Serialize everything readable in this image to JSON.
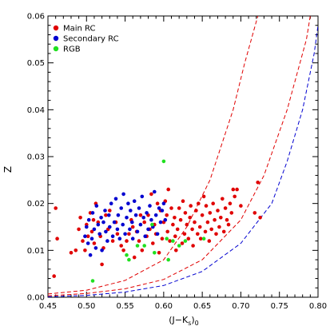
{
  "chart_data": {
    "type": "scatter",
    "xlabel": "(J−K",
    "xlabel_sub1": "s",
    "xlabel_mid": ")",
    "xlabel_sub2": "0",
    "ylabel": "Z",
    "xlim": [
      0.45,
      0.8
    ],
    "ylim": [
      0.0,
      0.06
    ],
    "xticks": [
      "0.45",
      "0.50",
      "0.55",
      "0.60",
      "0.65",
      "0.70",
      "0.75",
      "0.80"
    ],
    "yticks": [
      "0.00",
      "0.01",
      "0.02",
      "0.03",
      "0.04",
      "0.05",
      "0.06"
    ],
    "legend_position": "top-left",
    "series": [
      {
        "name": "Main RC",
        "color": "#e00000",
        "points": [
          [
            0.458,
            0.0045
          ],
          [
            0.46,
            0.019
          ],
          [
            0.462,
            0.0125
          ],
          [
            0.48,
            0.0095
          ],
          [
            0.486,
            0.01
          ],
          [
            0.49,
            0.0145
          ],
          [
            0.492,
            0.017
          ],
          [
            0.495,
            0.012
          ],
          [
            0.498,
            0.01
          ],
          [
            0.5,
            0.0155
          ],
          [
            0.502,
            0.013
          ],
          [
            0.505,
            0.018
          ],
          [
            0.507,
            0.014
          ],
          [
            0.509,
            0.0165
          ],
          [
            0.51,
            0.0115
          ],
          [
            0.512,
            0.02
          ],
          [
            0.515,
            0.016
          ],
          [
            0.518,
            0.013
          ],
          [
            0.52,
            0.007
          ],
          [
            0.522,
            0.0105
          ],
          [
            0.525,
            0.0175
          ],
          [
            0.528,
            0.0145
          ],
          [
            0.53,
            0.0185
          ],
          [
            0.534,
            0.012
          ],
          [
            0.538,
            0.016
          ],
          [
            0.54,
            0.0135
          ],
          [
            0.545,
            0.011
          ],
          [
            0.548,
            0.01
          ],
          [
            0.552,
            0.012
          ],
          [
            0.555,
            0.0135
          ],
          [
            0.558,
            0.0165
          ],
          [
            0.56,
            0.015
          ],
          [
            0.562,
            0.0085
          ],
          [
            0.565,
            0.014
          ],
          [
            0.568,
            0.012
          ],
          [
            0.57,
            0.0175
          ],
          [
            0.572,
            0.01
          ],
          [
            0.575,
            0.016
          ],
          [
            0.578,
            0.013
          ],
          [
            0.58,
            0.0175
          ],
          [
            0.582,
            0.0145
          ],
          [
            0.584,
            0.022
          ],
          [
            0.586,
            0.0115
          ],
          [
            0.588,
            0.0155
          ],
          [
            0.59,
            0.0135
          ],
          [
            0.592,
            0.02
          ],
          [
            0.594,
            0.0095
          ],
          [
            0.596,
            0.0185
          ],
          [
            0.598,
            0.0125
          ],
          [
            0.6,
            0.016
          ],
          [
            0.602,
            0.0205
          ],
          [
            0.604,
            0.0175
          ],
          [
            0.605,
            0.014
          ],
          [
            0.606,
            0.023
          ],
          [
            0.608,
            0.012
          ],
          [
            0.61,
            0.019
          ],
          [
            0.612,
            0.0155
          ],
          [
            0.614,
            0.017
          ],
          [
            0.615,
            0.013
          ],
          [
            0.616,
            0.01
          ],
          [
            0.618,
            0.0145
          ],
          [
            0.62,
            0.019
          ],
          [
            0.622,
            0.0165
          ],
          [
            0.624,
            0.0115
          ],
          [
            0.625,
            0.0205
          ],
          [
            0.627,
            0.0135
          ],
          [
            0.628,
            0.018
          ],
          [
            0.63,
            0.0155
          ],
          [
            0.632,
            0.0125
          ],
          [
            0.634,
            0.017
          ],
          [
            0.635,
            0.0195
          ],
          [
            0.637,
            0.0145
          ],
          [
            0.638,
            0.011
          ],
          [
            0.64,
            0.016
          ],
          [
            0.642,
            0.0185
          ],
          [
            0.644,
            0.0135
          ],
          [
            0.645,
            0.02
          ],
          [
            0.647,
            0.015
          ],
          [
            0.648,
            0.0125
          ],
          [
            0.65,
            0.0175
          ],
          [
            0.652,
            0.0215
          ],
          [
            0.654,
            0.014
          ],
          [
            0.655,
            0.0195
          ],
          [
            0.657,
            0.016
          ],
          [
            0.659,
            0.012
          ],
          [
            0.66,
            0.018
          ],
          [
            0.662,
            0.0145
          ],
          [
            0.664,
            0.02
          ],
          [
            0.666,
            0.0165
          ],
          [
            0.668,
            0.0135
          ],
          [
            0.67,
            0.0185
          ],
          [
            0.672,
            0.015
          ],
          [
            0.674,
            0.017
          ],
          [
            0.676,
            0.021
          ],
          [
            0.678,
            0.014
          ],
          [
            0.68,
            0.019
          ],
          [
            0.682,
            0.0165
          ],
          [
            0.684,
            0.0155
          ],
          [
            0.686,
            0.02
          ],
          [
            0.688,
            0.018
          ],
          [
            0.69,
            0.023
          ],
          [
            0.692,
            0.0215
          ],
          [
            0.695,
            0.023
          ],
          [
            0.7,
            0.0195
          ],
          [
            0.718,
            0.018
          ],
          [
            0.722,
            0.0245
          ],
          [
            0.725,
            0.017
          ]
        ]
      },
      {
        "name": "Secondary RC",
        "color": "#0000d0",
        "points": [
          [
            0.498,
            0.013
          ],
          [
            0.5,
            0.015
          ],
          [
            0.502,
            0.0115
          ],
          [
            0.503,
            0.0165
          ],
          [
            0.505,
            0.009
          ],
          [
            0.507,
            0.0125
          ],
          [
            0.508,
            0.018
          ],
          [
            0.51,
            0.0145
          ],
          [
            0.512,
            0.0105
          ],
          [
            0.513,
            0.0195
          ],
          [
            0.515,
            0.0155
          ],
          [
            0.517,
            0.0135
          ],
          [
            0.519,
            0.017
          ],
          [
            0.52,
            0.01
          ],
          [
            0.522,
            0.016
          ],
          [
            0.524,
            0.0185
          ],
          [
            0.525,
            0.014
          ],
          [
            0.527,
            0.012
          ],
          [
            0.529,
            0.0175
          ],
          [
            0.53,
            0.015
          ],
          [
            0.532,
            0.02
          ],
          [
            0.534,
            0.013
          ],
          [
            0.536,
            0.016
          ],
          [
            0.538,
            0.021
          ],
          [
            0.54,
            0.0145
          ],
          [
            0.541,
            0.0175
          ],
          [
            0.543,
            0.0125
          ],
          [
            0.545,
            0.019
          ],
          [
            0.547,
            0.0155
          ],
          [
            0.548,
            0.022
          ],
          [
            0.55,
            0.0135
          ],
          [
            0.552,
            0.017
          ],
          [
            0.554,
            0.02
          ],
          [
            0.556,
            0.0145
          ],
          [
            0.557,
            0.0185
          ],
          [
            0.559,
            0.016
          ],
          [
            0.56,
            0.0125
          ],
          [
            0.562,
            0.0205
          ],
          [
            0.564,
            0.0175
          ],
          [
            0.566,
            0.014
          ],
          [
            0.568,
            0.019
          ],
          [
            0.57,
            0.0155
          ],
          [
            0.572,
            0.0215
          ],
          [
            0.574,
            0.017
          ],
          [
            0.576,
            0.013
          ],
          [
            0.578,
            0.018
          ],
          [
            0.58,
            0.0145
          ],
          [
            0.582,
            0.0195
          ],
          [
            0.584,
            0.0165
          ],
          [
            0.586,
            0.015
          ],
          [
            0.588,
            0.0225
          ],
          [
            0.59,
            0.0175
          ],
          [
            0.592,
            0.0135
          ],
          [
            0.594,
            0.019
          ],
          [
            0.596,
            0.016
          ],
          [
            0.598,
            0.0185
          ],
          [
            0.6,
            0.02
          ],
          [
            0.602,
            0.0165
          ]
        ]
      },
      {
        "name": "RGB",
        "color": "#20e020",
        "points": [
          [
            0.508,
            0.0035
          ],
          [
            0.552,
            0.009
          ],
          [
            0.555,
            0.008
          ],
          [
            0.566,
            0.011
          ],
          [
            0.575,
            0.011
          ],
          [
            0.585,
            0.0155
          ],
          [
            0.588,
            0.0095
          ],
          [
            0.6,
            0.029
          ],
          [
            0.604,
            0.0125
          ],
          [
            0.606,
            0.008
          ],
          [
            0.612,
            0.012
          ],
          [
            0.62,
            0.011
          ],
          [
            0.628,
            0.012
          ],
          [
            0.652,
            0.0125
          ]
        ]
      }
    ],
    "curves": [
      {
        "color": "#e00000",
        "dash": true,
        "points": [
          [
            0.45,
            0.0007
          ],
          [
            0.5,
            0.0015
          ],
          [
            0.55,
            0.0036
          ],
          [
            0.6,
            0.008
          ],
          [
            0.63,
            0.015
          ],
          [
            0.66,
            0.025
          ],
          [
            0.69,
            0.04
          ],
          [
            0.705,
            0.05
          ],
          [
            0.722,
            0.06
          ]
        ]
      },
      {
        "color": "#e00000",
        "dash": true,
        "points": [
          [
            0.45,
            0.0003
          ],
          [
            0.5,
            0.0008
          ],
          [
            0.55,
            0.0018
          ],
          [
            0.6,
            0.0038
          ],
          [
            0.65,
            0.008
          ],
          [
            0.7,
            0.0165
          ],
          [
            0.73,
            0.026
          ],
          [
            0.76,
            0.04
          ],
          [
            0.785,
            0.055
          ],
          [
            0.79,
            0.06
          ]
        ]
      },
      {
        "color": "#0000d0",
        "dash": true,
        "points": [
          [
            0.45,
            0.0001
          ],
          [
            0.5,
            0.0004
          ],
          [
            0.55,
            0.0011
          ],
          [
            0.6,
            0.0025
          ],
          [
            0.65,
            0.0055
          ],
          [
            0.7,
            0.0115
          ],
          [
            0.74,
            0.02
          ],
          [
            0.76,
            0.029
          ],
          [
            0.78,
            0.04
          ],
          [
            0.795,
            0.052
          ],
          [
            0.8,
            0.058
          ]
        ]
      }
    ]
  }
}
